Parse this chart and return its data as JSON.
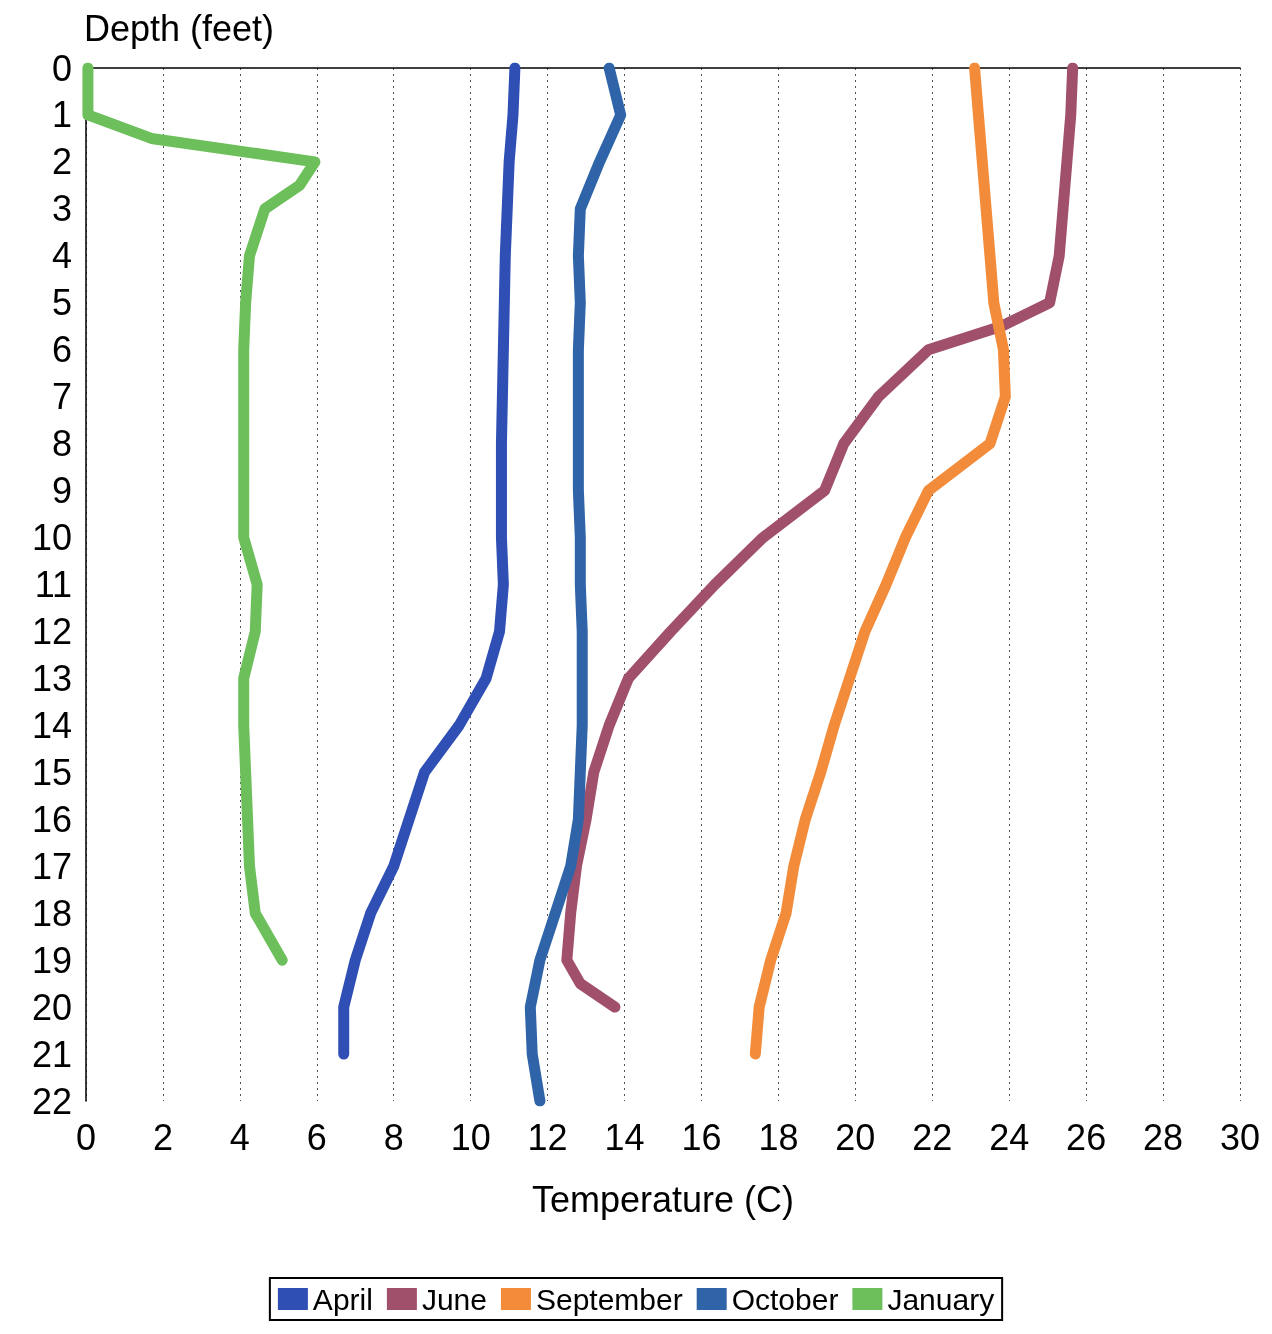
{
  "chart_data": {
    "type": "line",
    "xlabel": "Temperature (C)",
    "ylabel": "Depth (feet)",
    "xlim": [
      0,
      30
    ],
    "xticks": [
      0,
      2,
      4,
      6,
      8,
      10,
      12,
      14,
      16,
      18,
      20,
      22,
      24,
      26,
      28,
      30
    ],
    "ylim": [
      22,
      0
    ],
    "yticks": [
      0,
      1,
      2,
      3,
      4,
      5,
      6,
      7,
      8,
      9,
      10,
      11,
      12,
      13,
      14,
      15,
      16,
      17,
      18,
      19,
      20,
      21,
      22
    ],
    "grid": "x",
    "legend": "bottom",
    "marker": "none",
    "line_style": "solid",
    "series": [
      {
        "name": "April",
        "color": "#2f4fb5",
        "x": [
          11.15,
          11.1,
          11.0,
          10.9,
          10.85,
          10.8,
          10.8,
          10.85,
          10.75,
          10.4,
          9.7,
          8.8,
          8.4,
          8.0,
          7.4,
          7.0,
          6.7,
          6.7
        ],
        "values": [
          0,
          1,
          2,
          4,
          6,
          8,
          10,
          11,
          12,
          13,
          14,
          15,
          16,
          17,
          18,
          19,
          20,
          21
        ]
      },
      {
        "name": "June",
        "color": "#a0506a",
        "x": [
          25.65,
          25.6,
          25.5,
          25.4,
          25.3,
          25.05,
          23.8,
          21.9,
          20.6,
          19.7,
          19.2,
          17.6,
          16.35,
          15.2,
          14.1,
          13.6,
          13.2,
          13.0,
          12.75,
          12.6,
          12.5,
          12.85,
          13.75
        ],
        "values": [
          0,
          1,
          2,
          3,
          4,
          5,
          5.5,
          6,
          7,
          8,
          9,
          10,
          11,
          12,
          13,
          14,
          15,
          16,
          17,
          18,
          19,
          19.5,
          20
        ]
      },
      {
        "name": "September",
        "color": "#f28c3a",
        "x": [
          23.1,
          23.2,
          23.3,
          23.4,
          23.5,
          23.6,
          23.85,
          23.9,
          23.5,
          21.9,
          21.3,
          20.8,
          20.25,
          19.85,
          19.45,
          19.1,
          18.7,
          18.4,
          18.2,
          17.8,
          17.5,
          17.4
        ],
        "values": [
          0,
          1,
          2,
          3,
          4,
          5,
          6,
          7,
          8,
          9,
          10,
          11,
          12,
          13,
          14,
          15,
          16,
          17,
          18,
          19,
          20,
          21
        ]
      },
      {
        "name": "October",
        "color": "#2f65a8",
        "x": [
          13.6,
          13.9,
          13.35,
          12.85,
          12.8,
          12.85,
          12.8,
          12.8,
          12.8,
          12.8,
          12.85,
          12.85,
          12.9,
          12.9,
          12.9,
          12.85,
          12.8,
          12.6,
          12.2,
          11.8,
          11.55,
          11.6,
          11.8
        ],
        "values": [
          0,
          1,
          2,
          3,
          4,
          5,
          6,
          7,
          8,
          9,
          10,
          11,
          12,
          13,
          14,
          15,
          16,
          17,
          18,
          19,
          20,
          21,
          22
        ]
      },
      {
        "name": "January",
        "color": "#6cbf5a",
        "x": [
          0.05,
          0.05,
          1.7,
          5.95,
          5.55,
          4.65,
          4.25,
          4.15,
          4.1,
          4.1,
          4.1,
          4.1,
          4.1,
          4.45,
          4.4,
          4.1,
          4.1,
          4.15,
          4.2,
          4.25,
          4.4,
          5.1
        ],
        "values": [
          0,
          1,
          1.5,
          2,
          2.5,
          3,
          4,
          5,
          6,
          7,
          8,
          9,
          10,
          11,
          12,
          13,
          14,
          15,
          16,
          17,
          18,
          19
        ]
      }
    ]
  }
}
